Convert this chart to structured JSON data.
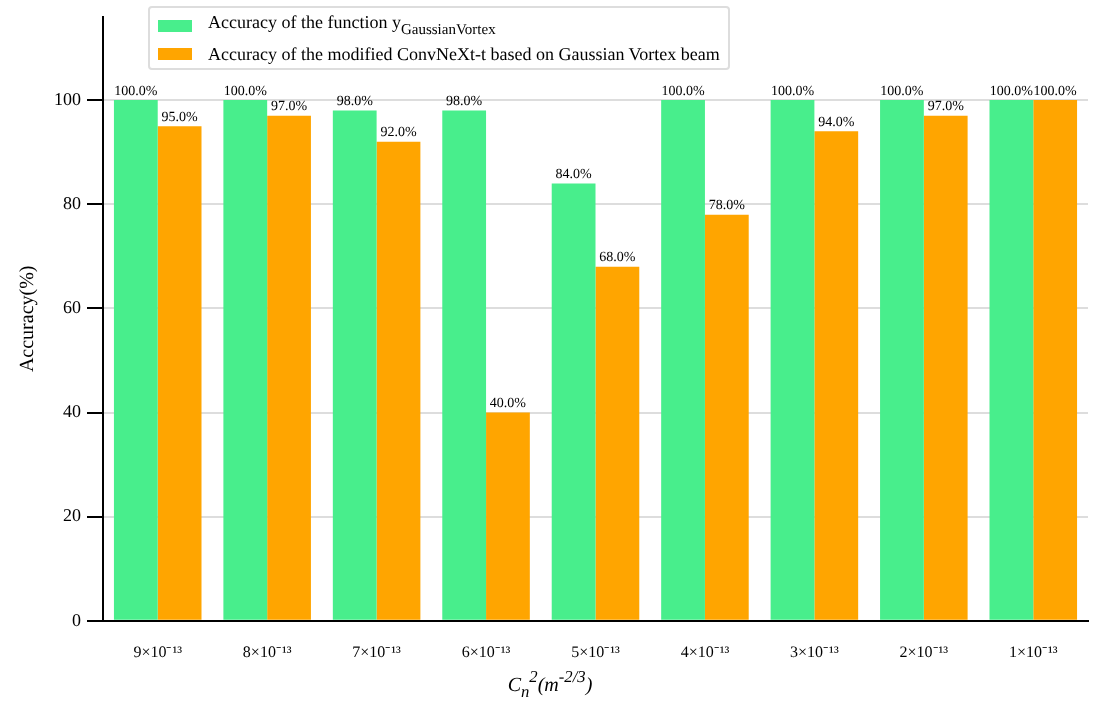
{
  "chart_data": {
    "type": "bar",
    "xlabel": "C$_{n}$$^{2}$(m$^{-2/3}$)",
    "ylabel": "Accuracy(%)",
    "categories": [
      "9×10⁻¹³",
      "8×10⁻¹³",
      "7×10⁻¹³",
      "6×10⁻¹³",
      "5×10⁻¹³",
      "4×10⁻¹³",
      "3×10⁻¹³",
      "2×10⁻¹³",
      "1×10⁻¹³"
    ],
    "series": [
      {
        "name": "Accuracy of the function y$_{GaussianVortex}$",
        "color": "#48ee8c",
        "values": [
          100,
          100,
          98,
          98,
          84,
          100,
          100,
          100,
          100
        ],
        "value_labels": [
          "100.0%",
          "100.0%",
          "98.0%",
          "98.0%",
          "84.0%",
          "100.0%",
          "100.0%",
          "100.0%",
          "100.0%"
        ]
      },
      {
        "name": "Accuracy of the modified ConvNeXt-t based on Gaussian Vortex beam",
        "color": "#ffa500",
        "values": [
          95,
          97,
          92,
          40,
          68,
          78,
          94,
          97,
          100
        ],
        "value_labels": [
          "95.0%",
          "97.0%",
          "92.0%",
          "40.0%",
          "68.0%",
          "78.0%",
          "94.0%",
          "97.0%",
          "100.0%"
        ]
      }
    ],
    "ylim": [
      0,
      116
    ],
    "yticks": [
      0,
      20,
      40,
      60,
      80,
      100
    ],
    "grid": "y",
    "legend": "top left"
  }
}
